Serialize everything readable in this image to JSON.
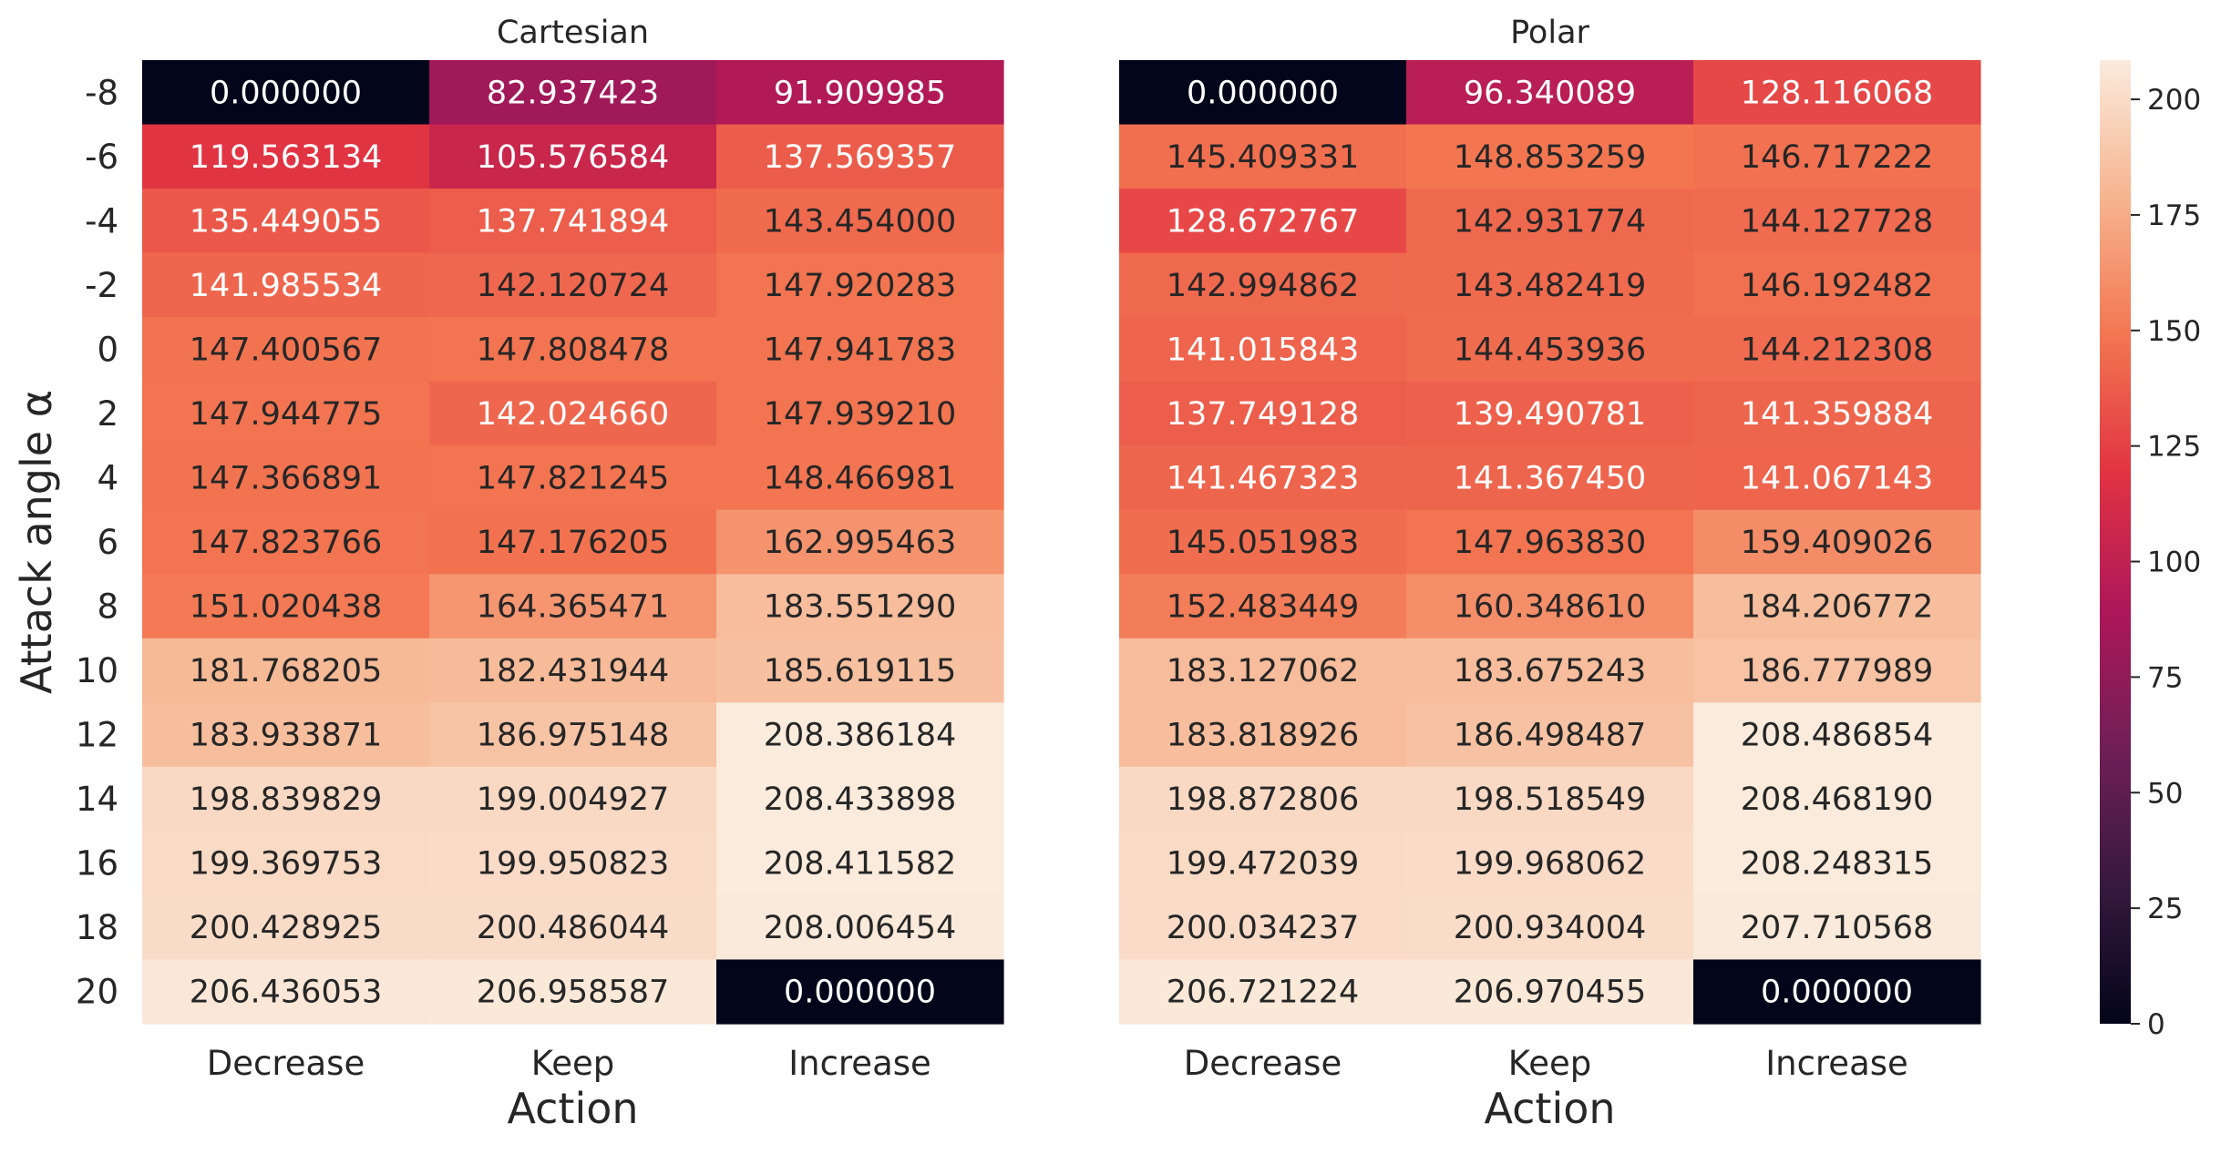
{
  "chart_data": [
    {
      "type": "heatmap",
      "title": "Cartesian",
      "xlabel": "Action",
      "ylabel": "Attack angle α",
      "x_categories": [
        "Decrease",
        "Keep",
        "Increase"
      ],
      "y_categories": [
        "-8",
        "-6",
        "-4",
        "-2",
        "0",
        "2",
        "4",
        "6",
        "8",
        "10",
        "12",
        "14",
        "16",
        "18",
        "20"
      ],
      "values": [
        [
          0.0,
          82.937423,
          91.909985
        ],
        [
          119.563134,
          105.576584,
          137.569357
        ],
        [
          135.449055,
          137.741894,
          143.454
        ],
        [
          141.985534,
          142.120724,
          147.920283
        ],
        [
          147.400567,
          147.808478,
          147.941783
        ],
        [
          147.944775,
          142.02466,
          147.93921
        ],
        [
          147.366891,
          147.821245,
          148.466981
        ],
        [
          147.823766,
          147.176205,
          162.995463
        ],
        [
          151.020438,
          164.365471,
          183.55129
        ],
        [
          181.768205,
          182.431944,
          185.619115
        ],
        [
          183.933871,
          186.975148,
          208.386184
        ],
        [
          198.839829,
          199.004927,
          208.433898
        ],
        [
          199.369753,
          199.950823,
          208.411582
        ],
        [
          200.428925,
          200.486044,
          208.006454
        ],
        [
          206.436053,
          206.958587,
          0.0
        ]
      ],
      "value_format": "fixed6"
    },
    {
      "type": "heatmap",
      "title": "Polar",
      "xlabel": "Action",
      "ylabel": "",
      "x_categories": [
        "Decrease",
        "Keep",
        "Increase"
      ],
      "y_categories": [],
      "values": [
        [
          0.0,
          96.340089,
          128.116068
        ],
        [
          145.409331,
          148.853259,
          146.717222
        ],
        [
          128.672767,
          142.931774,
          144.127728
        ],
        [
          142.994862,
          143.482419,
          146.192482
        ],
        [
          141.015843,
          144.453936,
          144.212308
        ],
        [
          137.749128,
          139.490781,
          141.359884
        ],
        [
          141.467323,
          141.36745,
          141.067143
        ],
        [
          145.051983,
          147.96383,
          159.409026
        ],
        [
          152.483449,
          160.34861,
          184.206772
        ],
        [
          183.127062,
          183.675243,
          186.777989
        ],
        [
          183.818926,
          186.498487,
          208.486854
        ],
        [
          198.872806,
          198.518549,
          208.46819
        ],
        [
          199.472039,
          199.968062,
          208.248315
        ],
        [
          200.034237,
          200.934004,
          207.710568
        ],
        [
          206.721224,
          206.970455,
          0.0
        ]
      ],
      "value_format": "fixed6"
    }
  ],
  "colorbar": {
    "range": [
      0,
      208.486854
    ],
    "ticks": [
      "0",
      "25",
      "50",
      "75",
      "100",
      "125",
      "150",
      "175",
      "200"
    ],
    "colormap": "rocket",
    "colormap_stops": [
      "#03051a",
      "#36193e",
      "#701f57",
      "#ad1759",
      "#e13342",
      "#f37651",
      "#f6b48f",
      "#faebdd"
    ]
  }
}
